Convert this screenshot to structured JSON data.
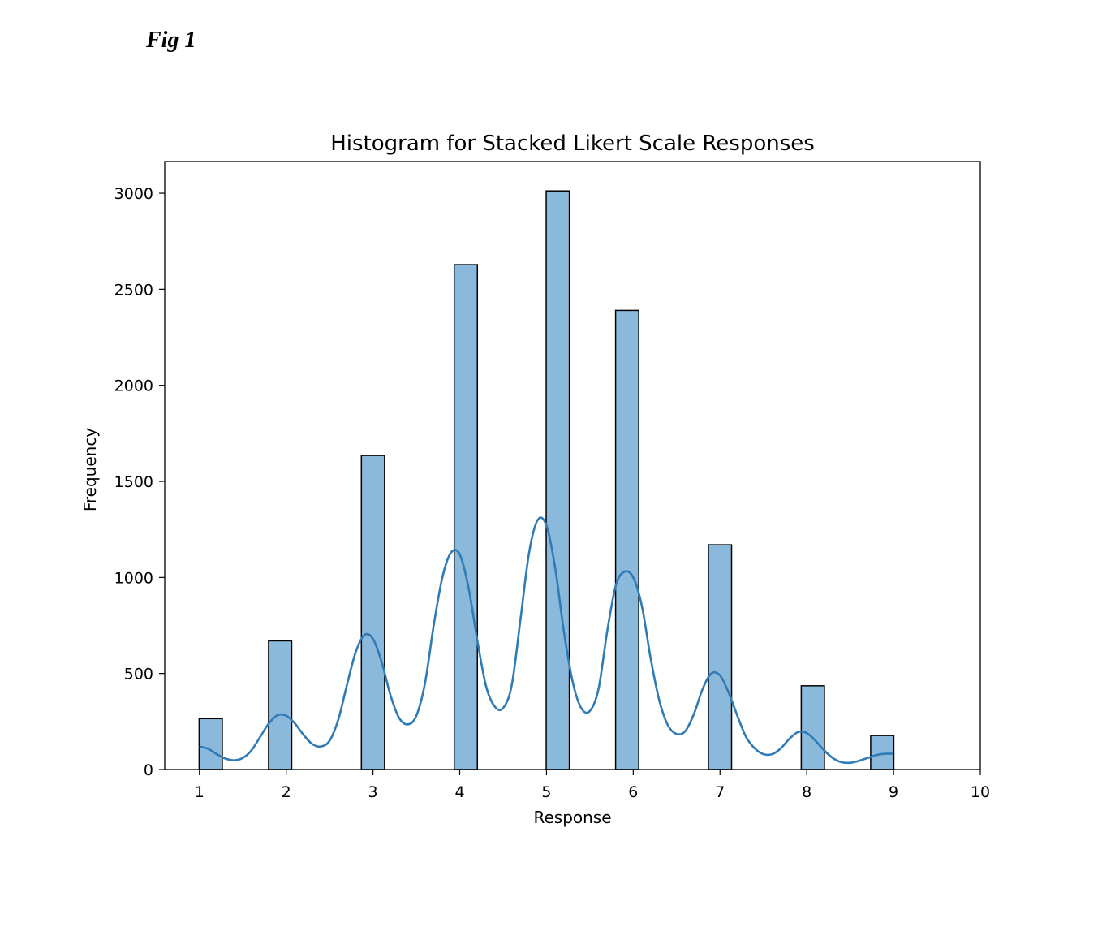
{
  "figure": {
    "label": "Fig 1"
  },
  "chart_data": {
    "type": "bar",
    "title": "Histogram for Stacked Likert Scale Responses",
    "xlabel": "Response",
    "ylabel": "Frequency",
    "xlim": [
      0.6,
      10
    ],
    "ylim": [
      0,
      3165
    ],
    "x_ticks": [
      1,
      2,
      3,
      4,
      5,
      6,
      7,
      8,
      9,
      10
    ],
    "y_ticks": [
      0,
      500,
      1000,
      1500,
      2000,
      2500,
      3000
    ],
    "grid": false,
    "bar_width": 0.267,
    "bar_color": "#8bb9db",
    "bar_edge_color": "#000000",
    "kde_color": "#2f7bb6",
    "bars": [
      {
        "x": 1.13,
        "value": 265
      },
      {
        "x": 1.93,
        "value": 670
      },
      {
        "x": 3.0,
        "value": 1635
      },
      {
        "x": 4.07,
        "value": 2628
      },
      {
        "x": 5.13,
        "value": 3012
      },
      {
        "x": 5.93,
        "value": 2390
      },
      {
        "x": 7.0,
        "value": 1170
      },
      {
        "x": 8.07,
        "value": 436
      },
      {
        "x": 8.87,
        "value": 177
      }
    ],
    "kde_curve": [
      [
        1.0,
        120
      ],
      [
        1.1,
        108
      ],
      [
        1.2,
        80
      ],
      [
        1.3,
        57
      ],
      [
        1.4,
        48
      ],
      [
        1.5,
        60
      ],
      [
        1.6,
        100
      ],
      [
        1.7,
        170
      ],
      [
        1.8,
        240
      ],
      [
        1.9,
        283
      ],
      [
        2.0,
        280
      ],
      [
        2.1,
        240
      ],
      [
        2.2,
        180
      ],
      [
        2.3,
        133
      ],
      [
        2.4,
        120
      ],
      [
        2.5,
        150
      ],
      [
        2.6,
        260
      ],
      [
        2.7,
        440
      ],
      [
        2.8,
        610
      ],
      [
        2.9,
        700
      ],
      [
        3.0,
        680
      ],
      [
        3.1,
        560
      ],
      [
        3.2,
        390
      ],
      [
        3.3,
        270
      ],
      [
        3.4,
        235
      ],
      [
        3.5,
        280
      ],
      [
        3.6,
        450
      ],
      [
        3.7,
        750
      ],
      [
        3.8,
        1000
      ],
      [
        3.9,
        1130
      ],
      [
        4.0,
        1120
      ],
      [
        4.1,
        950
      ],
      [
        4.2,
        680
      ],
      [
        4.3,
        440
      ],
      [
        4.4,
        330
      ],
      [
        4.5,
        320
      ],
      [
        4.6,
        440
      ],
      [
        4.7,
        780
      ],
      [
        4.8,
        1130
      ],
      [
        4.9,
        1300
      ],
      [
        5.0,
        1270
      ],
      [
        5.1,
        1050
      ],
      [
        5.2,
        720
      ],
      [
        5.3,
        460
      ],
      [
        5.4,
        320
      ],
      [
        5.5,
        305
      ],
      [
        5.6,
        420
      ],
      [
        5.7,
        720
      ],
      [
        5.8,
        960
      ],
      [
        5.9,
        1030
      ],
      [
        6.0,
        1000
      ],
      [
        6.1,
        850
      ],
      [
        6.2,
        580
      ],
      [
        6.3,
        360
      ],
      [
        6.4,
        230
      ],
      [
        6.5,
        185
      ],
      [
        6.6,
        200
      ],
      [
        6.7,
        290
      ],
      [
        6.8,
        420
      ],
      [
        6.9,
        500
      ],
      [
        7.0,
        490
      ],
      [
        7.1,
        400
      ],
      [
        7.2,
        280
      ],
      [
        7.3,
        170
      ],
      [
        7.4,
        110
      ],
      [
        7.5,
        80
      ],
      [
        7.6,
        80
      ],
      [
        7.7,
        110
      ],
      [
        7.8,
        160
      ],
      [
        7.9,
        195
      ],
      [
        8.0,
        190
      ],
      [
        8.1,
        150
      ],
      [
        8.2,
        100
      ],
      [
        8.3,
        60
      ],
      [
        8.4,
        38
      ],
      [
        8.5,
        35
      ],
      [
        8.6,
        45
      ],
      [
        8.7,
        60
      ],
      [
        8.8,
        75
      ],
      [
        8.9,
        82
      ],
      [
        9.0,
        82
      ]
    ]
  }
}
